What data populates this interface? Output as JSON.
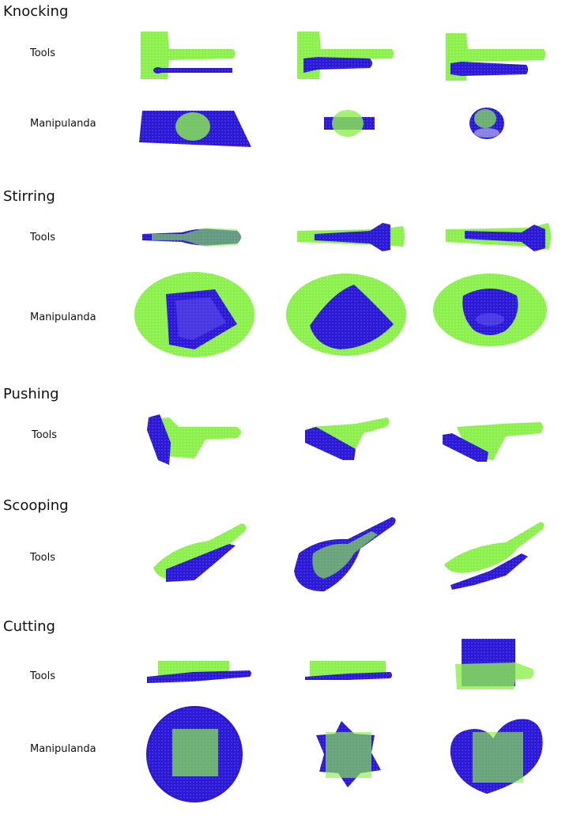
{
  "colors": {
    "green": "#8cf04c",
    "blue": "#2a18d6",
    "blue_dark": "#1a0fa8"
  },
  "sections": [
    {
      "title": "Knocking",
      "rows": [
        {
          "label": "Tools"
        },
        {
          "label": "Manipulanda"
        }
      ]
    },
    {
      "title": "Stirring",
      "rows": [
        {
          "label": "Tools"
        },
        {
          "label": "Manipulanda"
        }
      ]
    },
    {
      "title": "Pushing",
      "rows": [
        {
          "label": "Tools"
        }
      ]
    },
    {
      "title": "Scooping",
      "rows": [
        {
          "label": "Tools"
        }
      ]
    },
    {
      "title": "Cutting",
      "rows": [
        {
          "label": "Tools"
        },
        {
          "label": "Manipulanda"
        }
      ]
    }
  ]
}
